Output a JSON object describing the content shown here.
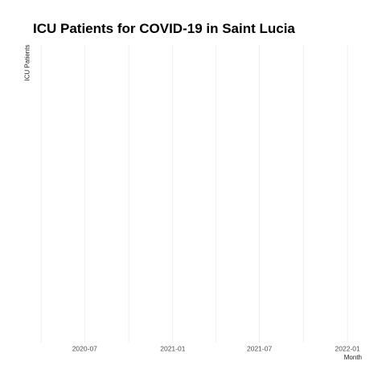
{
  "chart_data": {
    "type": "line",
    "title": "ICU Patients for COVID-19 in Saint Lucia",
    "xlabel": "Month",
    "ylabel": "ICU Patients",
    "x_axis_type": "date",
    "major_ticks": [
      {
        "date": "2020-07-01",
        "label": "2020-07"
      },
      {
        "date": "2021-01-01",
        "label": "2021-01"
      },
      {
        "date": "2021-07-01",
        "label": "2021-07"
      },
      {
        "date": "2022-01-01",
        "label": "2022-01"
      }
    ],
    "minor_gridlines": [
      "2020-04-01",
      "2020-10-01",
      "2021-04-01",
      "2021-10-01"
    ],
    "xlim": [
      "2020-03-20",
      "2022-01-31"
    ],
    "grid": true,
    "series": [],
    "colors": {
      "grid": "#ebebeb",
      "tick_text": "#4d4d4d"
    }
  }
}
